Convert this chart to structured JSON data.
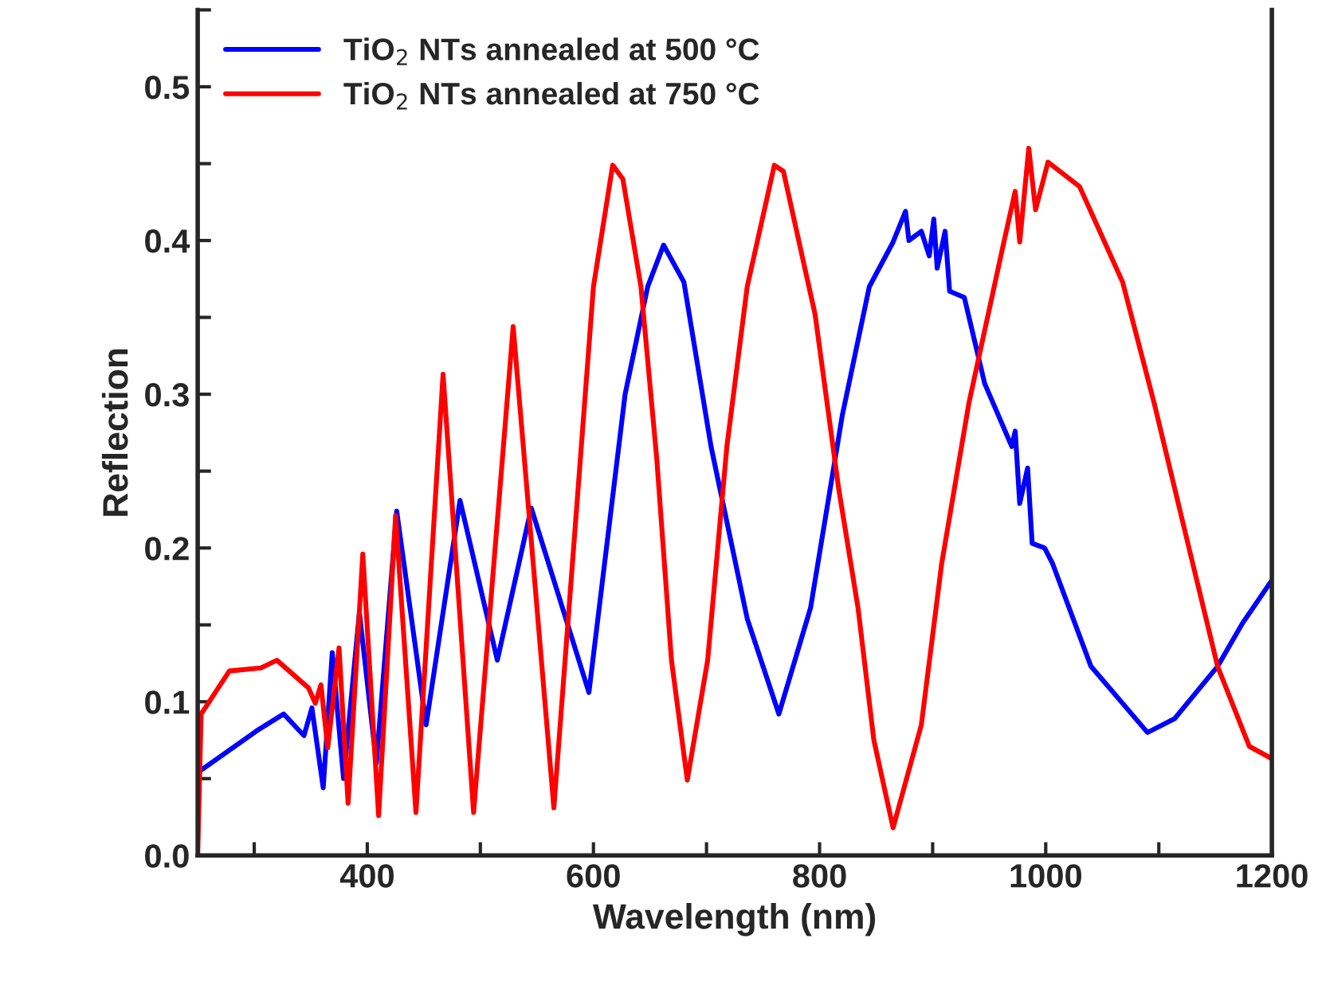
{
  "chart_data": {
    "type": "line",
    "xlabel": "Wavelength (nm)",
    "ylabel": "Reflection",
    "xlim": [
      250,
      1200
    ],
    "ylim": [
      0,
      0.55
    ],
    "xticks": [
      {
        "value": 300,
        "label": null
      },
      400,
      {
        "value": 500,
        "label": null
      },
      600,
      {
        "value": 700,
        "label": null
      },
      800,
      {
        "value": 900,
        "label": null
      },
      1000,
      {
        "value": 1100,
        "label": null
      },
      1200
    ],
    "yticks": [
      {
        "value": 0,
        "label": "0.0"
      },
      {
        "value": 0.05,
        "label": null
      },
      0.1,
      {
        "value": 0.15,
        "label": null
      },
      0.2,
      {
        "value": 0.25,
        "label": null
      },
      0.3,
      {
        "value": 0.35,
        "label": null
      },
      0.4,
      {
        "value": 0.45,
        "label": null
      },
      0.5,
      {
        "value": 0.55,
        "label": null
      }
    ],
    "grid": false,
    "legend": "top left",
    "marker": "none",
    "line_style": "solid",
    "series": [
      {
        "name": "TiO$_{2}$ NTs annealed at 500 °C",
        "color": "#0000ff",
        "x": [
          250,
          302,
          326,
          344,
          351,
          361,
          369,
          379,
          393,
          408,
          426,
          452,
          482,
          515,
          545,
          596,
          628,
          648,
          662,
          680,
          704,
          736,
          764,
          792,
          820,
          844,
          865,
          876,
          879,
          890,
          897,
          901,
          904,
          911,
          915,
          928,
          946,
          970,
          973,
          977,
          984,
          988,
          999,
          1006,
          1040,
          1090,
          1114,
          1152,
          1174,
          1200
        ],
        "values": [
          0.054,
          0.081,
          0.092,
          0.078,
          0.096,
          0.044,
          0.132,
          0.05,
          0.158,
          0.06,
          0.224,
          0.085,
          0.231,
          0.127,
          0.226,
          0.106,
          0.3,
          0.37,
          0.397,
          0.373,
          0.266,
          0.154,
          0.092,
          0.161,
          0.286,
          0.37,
          0.399,
          0.419,
          0.4,
          0.406,
          0.39,
          0.414,
          0.382,
          0.406,
          0.367,
          0.363,
          0.307,
          0.266,
          0.276,
          0.229,
          0.252,
          0.203,
          0.2,
          0.19,
          0.123,
          0.08,
          0.089,
          0.123,
          0.151,
          0.179
        ]
      },
      {
        "name": "TiO$_{2}$ NTs annealed at 750 °C",
        "color": "#ff0000",
        "x": [
          250,
          253,
          278,
          306,
          320,
          348,
          354,
          359,
          365,
          375,
          383,
          396,
          410,
          425,
          443,
          467,
          494,
          529,
          565,
          600,
          617,
          626,
          642,
          656,
          669,
          683,
          701,
          718,
          736,
          760,
          768,
          796,
          817,
          834,
          848,
          865,
          890,
          908,
          932,
          963,
          973,
          977,
          985,
          991,
          1002,
          1030,
          1068,
          1096,
          1128,
          1152,
          1180,
          1200
        ],
        "values": [
          0,
          0.092,
          0.12,
          0.122,
          0.127,
          0.109,
          0.099,
          0.111,
          0.07,
          0.135,
          0.034,
          0.196,
          0.026,
          0.221,
          0.028,
          0.313,
          0.028,
          0.344,
          0.031,
          0.37,
          0.449,
          0.44,
          0.37,
          0.258,
          0.127,
          0.049,
          0.127,
          0.266,
          0.37,
          0.449,
          0.445,
          0.352,
          0.238,
          0.161,
          0.075,
          0.018,
          0.085,
          0.19,
          0.294,
          0.399,
          0.432,
          0.399,
          0.46,
          0.42,
          0.451,
          0.435,
          0.373,
          0.294,
          0.196,
          0.123,
          0.071,
          0.063
        ]
      }
    ]
  }
}
